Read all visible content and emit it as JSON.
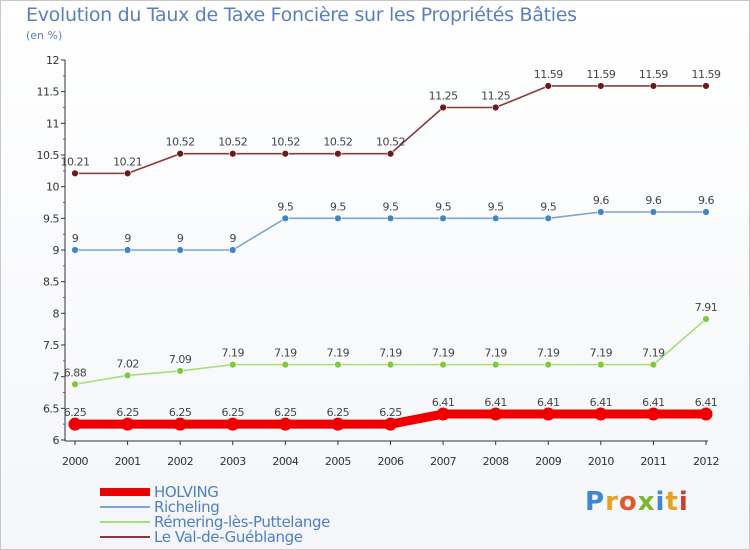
{
  "header": {
    "title": "Evolution du Taux de Taxe Foncière sur les Propriétés Bâties",
    "subtitle": "(en %)"
  },
  "logo": {
    "text": "Proxiti",
    "letter_colors": [
      "#3f86d8",
      "#e8a020",
      "#e05a30",
      "#7ab830",
      "#3f86d8",
      "#e8a020",
      "#d03a30"
    ]
  },
  "chart_data": {
    "type": "line",
    "title": "Evolution du Taux de Taxe Foncière sur les Propriétés Bâties",
    "subtitle": "(en %)",
    "xlabel": "",
    "ylabel": "",
    "x": [
      "2000",
      "2001",
      "2002",
      "2003",
      "2004",
      "2005",
      "2006",
      "2007",
      "2008",
      "2009",
      "2010",
      "2011",
      "2012"
    ],
    "ylim": [
      6,
      12
    ],
    "yticks": [
      "6",
      "6.5",
      "7",
      "7.5",
      "8",
      "8.5",
      "9",
      "9.5",
      "10",
      "10.5",
      "11",
      "11.5",
      "12"
    ],
    "grid": false,
    "legend_position": "bottom-left",
    "series": [
      {
        "name": "HOLVING",
        "color": "#ee0000",
        "point_color": "#ee0000",
        "bold": true,
        "values": [
          6.25,
          6.25,
          6.25,
          6.25,
          6.25,
          6.25,
          6.25,
          6.41,
          6.41,
          6.41,
          6.41,
          6.41,
          6.41
        ],
        "labels": [
          "6.25",
          "6.25",
          "6.25",
          "6.25",
          "6.25",
          "6.25",
          "6.25",
          "6.41",
          "6.41",
          "6.41",
          "6.41",
          "6.41",
          "6.41"
        ]
      },
      {
        "name": "Richeling",
        "color": "#7ba3d3",
        "point_color": "#3f86c8",
        "bold": false,
        "values": [
          9,
          9,
          9,
          9,
          9.5,
          9.5,
          9.5,
          9.5,
          9.5,
          9.5,
          9.6,
          9.6,
          9.6
        ],
        "labels": [
          "9",
          "9",
          "9",
          "9",
          "9.5",
          "9.5",
          "9.5",
          "9.5",
          "9.5",
          "9.5",
          "9.6",
          "9.6",
          "9.6"
        ]
      },
      {
        "name": "Rémering-lès-Puttelange",
        "color": "#a6df77",
        "point_color": "#7dcb3c",
        "bold": false,
        "values": [
          6.88,
          7.02,
          7.09,
          7.19,
          7.19,
          7.19,
          7.19,
          7.19,
          7.19,
          7.19,
          7.19,
          7.19,
          7.91
        ],
        "labels": [
          "6.88",
          "7.02",
          "7.09",
          "7.19",
          "7.19",
          "7.19",
          "7.19",
          "7.19",
          "7.19",
          "7.19",
          "7.19",
          "7.19",
          "7.91"
        ]
      },
      {
        "name": "Le Val-de-Guéblange",
        "color": "#8b3a3a",
        "point_color": "#6b1a1a",
        "bold": false,
        "values": [
          10.21,
          10.21,
          10.52,
          10.52,
          10.52,
          10.52,
          10.52,
          11.25,
          11.25,
          11.59,
          11.59,
          11.59,
          11.59
        ],
        "labels": [
          "10.21",
          "10.21",
          "10.52",
          "10.52",
          "10.52",
          "10.52",
          "10.52",
          "11.25",
          "11.25",
          "11.59",
          "11.59",
          "11.59",
          "11.59"
        ]
      }
    ]
  }
}
